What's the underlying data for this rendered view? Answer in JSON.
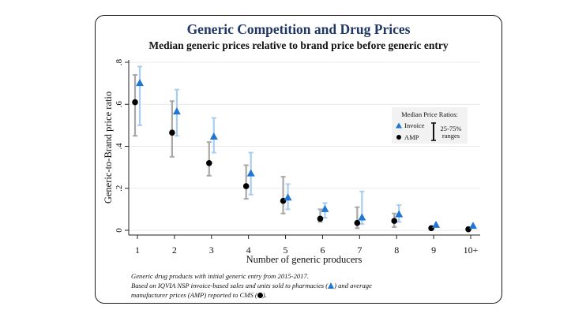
{
  "title": "Generic Competition and Drug Prices",
  "subtitle": "Median generic prices relative to brand price before generic entry",
  "colors": {
    "title": "#1f3864",
    "invoice": "#1f77d2",
    "invoice_range": "#a9cdf0",
    "amp": "#000000",
    "amp_range": "#a8a8a8"
  },
  "notes": {
    "line1": "Generic drug products with initial generic entry from 2015-2017.",
    "line2a": "Based on IQVIA NSP invoice-based sales and units sold to pharmacies (",
    "line2b": ") and average",
    "line3a": "manufacturer prices (AMP) reported to CMS (",
    "line3b": ")."
  },
  "chart_data": {
    "type": "scatter",
    "xlabel": "Number of generic producers",
    "ylabel": "Generic-to-Brand price ratio",
    "categories": [
      "1",
      "2",
      "3",
      "4",
      "5",
      "6",
      "7",
      "8",
      "9",
      "10+"
    ],
    "yticks": [
      0,
      0.2,
      0.4,
      0.6,
      0.8
    ],
    "ytick_labels": [
      "0",
      ".2",
      ".4",
      ".6",
      ".8"
    ],
    "ylim": [
      -0.01,
      0.82
    ],
    "grid": true,
    "legend": {
      "title": "Median Price Ratios:",
      "invoice_label": "Invoice",
      "amp_label": "AMP",
      "range_label_1": "25-75%",
      "range_label_2": "ranges",
      "position": "right"
    },
    "series": [
      {
        "name": "Invoice",
        "marker": "triangle",
        "values": [
          0.7,
          0.565,
          0.445,
          0.27,
          0.155,
          0.1,
          0.06,
          0.075,
          0.025,
          0.02
        ],
        "low": [
          0.5,
          0.45,
          0.37,
          0.17,
          0.1,
          0.06,
          0.03,
          0.04,
          null,
          null
        ],
        "high": [
          0.78,
          0.67,
          0.535,
          0.37,
          0.22,
          0.13,
          0.185,
          0.12,
          null,
          null
        ]
      },
      {
        "name": "AMP",
        "marker": "circle",
        "values": [
          0.61,
          0.465,
          0.32,
          0.21,
          0.14,
          0.055,
          0.035,
          0.045,
          0.01,
          0.005
        ],
        "low": [
          0.45,
          0.35,
          0.26,
          0.15,
          0.08,
          0.04,
          0.01,
          0.015,
          null,
          null
        ],
        "high": [
          0.74,
          0.615,
          0.42,
          0.31,
          0.255,
          0.1,
          0.11,
          0.08,
          null,
          null
        ]
      }
    ]
  }
}
